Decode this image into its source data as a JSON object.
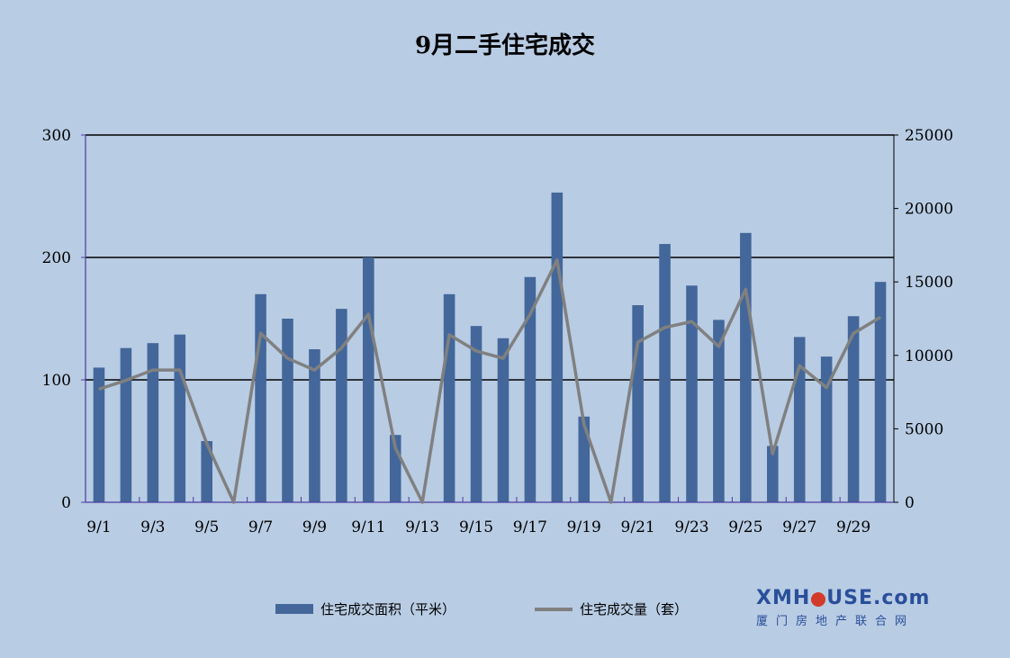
{
  "chart_data": {
    "type": "bar-line",
    "title": "9月二手住宅成交",
    "categories": [
      "9/1",
      "9/2",
      "9/3",
      "9/4",
      "9/5",
      "9/6",
      "9/7",
      "9/8",
      "9/9",
      "9/10",
      "9/11",
      "9/12",
      "9/13",
      "9/14",
      "9/15",
      "9/16",
      "9/17",
      "9/18",
      "9/19",
      "9/20",
      "9/21",
      "9/22",
      "9/23",
      "9/24",
      "9/25",
      "9/26",
      "9/27",
      "9/28",
      "9/29",
      "9/30"
    ],
    "x_tick_labels": [
      "9/1",
      "9/3",
      "9/5",
      "9/7",
      "9/9",
      "9/11",
      "9/13",
      "9/15",
      "9/17",
      "9/19",
      "9/21",
      "9/23",
      "9/25",
      "9/27",
      "9/29"
    ],
    "y_left": {
      "min": 0,
      "max": 300,
      "ticks": [
        0,
        100,
        200,
        300
      ]
    },
    "y_right": {
      "min": 0,
      "max": 25000,
      "ticks": [
        0,
        5000,
        10000,
        15000,
        20000,
        25000
      ]
    },
    "grid": true,
    "legend_position": "bottom",
    "series": [
      {
        "name": "住宅成交面积（平米）",
        "type": "bar",
        "axis": "left",
        "color": "#43679a",
        "values": [
          110,
          126,
          130,
          137,
          50,
          0,
          170,
          150,
          125,
          158,
          200,
          55,
          0,
          170,
          144,
          134,
          184,
          253,
          70,
          0,
          161,
          211,
          177,
          149,
          220,
          46,
          135,
          119,
          152,
          180
        ]
      },
      {
        "name": "住宅成交量（套）",
        "type": "line",
        "axis": "right",
        "color": "#808080",
        "values": [
          7700,
          8300,
          9000,
          9000,
          4000,
          0,
          11500,
          9800,
          9000,
          10500,
          12800,
          3700,
          0,
          11400,
          10300,
          9800,
          12800,
          16500,
          5300,
          0,
          10900,
          11900,
          12300,
          10600,
          14500,
          3300,
          9300,
          7800,
          11500,
          12600
        ]
      }
    ]
  },
  "logo": {
    "main_left": "XMH",
    "main_right": "USE.com",
    "sub": "厦门房地产联合网"
  }
}
